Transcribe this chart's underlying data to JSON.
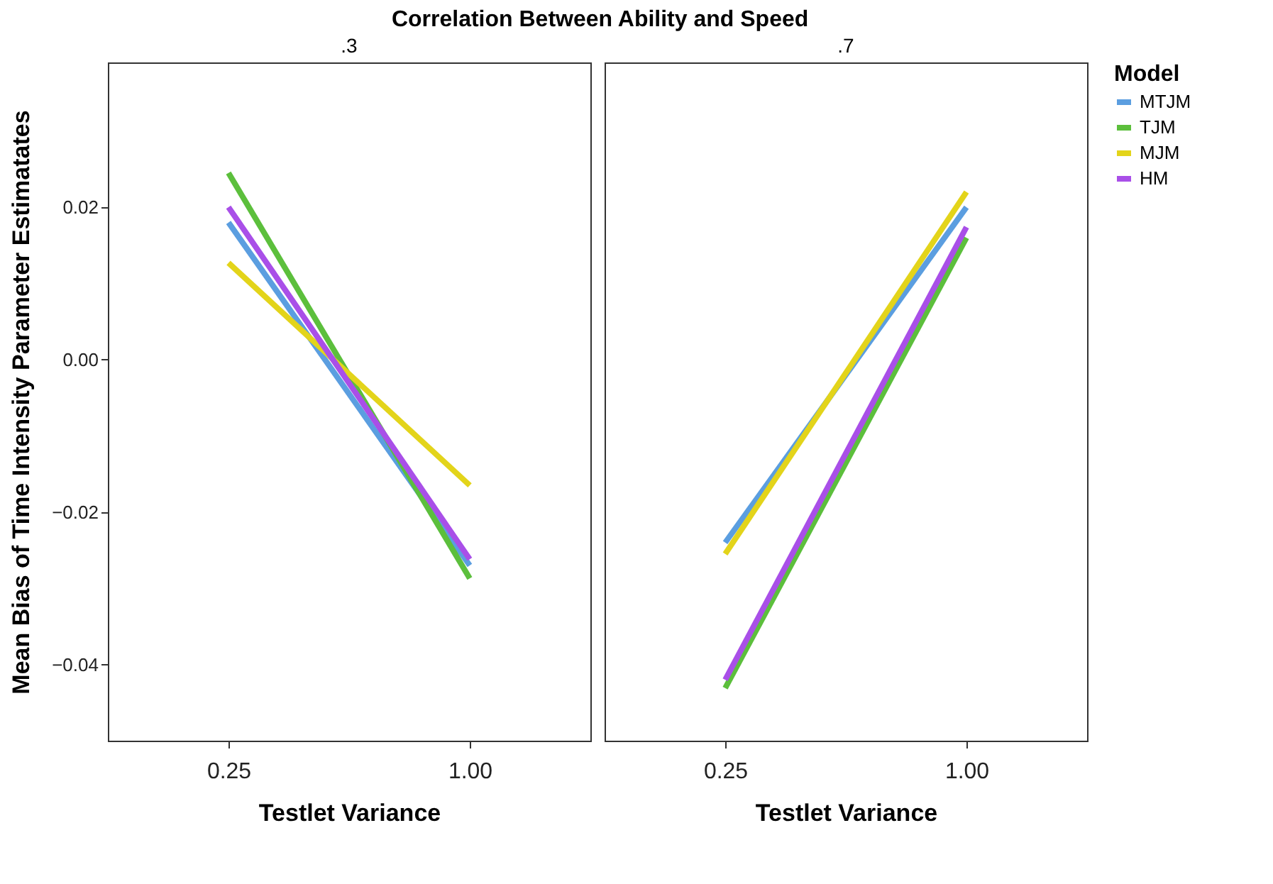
{
  "chart_data": [
    {
      "type": "line",
      "title": ".3",
      "xlabel": "Testlet Variance",
      "ylabel": "Mean Bias of Time Intensity Parameter Estimatates",
      "legend_title": "Model",
      "legend": "top right",
      "annotations": [
        "Correlation Between Ability and Speed"
      ],
      "categories": [
        "0.25",
        "1.00"
      ],
      "ylim": [
        -0.05,
        0.039
      ],
      "yticks": [
        -0.04,
        -0.02,
        {
          "value": 0,
          "label": "0.00"
        },
        0.02
      ],
      "grid": false,
      "marker": "none",
      "line_style": "solid",
      "series": [
        {
          "name": "MTJM",
          "color": "#5b9ee0",
          "values": [
            0.018,
            -0.027
          ]
        },
        {
          "name": "TJM",
          "color": "#5cbf3c",
          "values": [
            0.0245,
            -0.0287
          ]
        },
        {
          "name": "MJM",
          "color": "#e3d41a",
          "values": [
            0.0127,
            -0.0165
          ]
        },
        {
          "name": "HM",
          "color": "#a94fe8",
          "values": [
            0.02,
            -0.0262
          ]
        }
      ]
    },
    {
      "type": "line",
      "title": ".7",
      "xlabel": "Testlet Variance",
      "categories": [
        "0.25",
        "1.00"
      ],
      "ylim": [
        -0.05,
        0.039
      ],
      "tick_labels": "x",
      "grid": false,
      "marker": "none",
      "line_style": "solid",
      "series": [
        {
          "name": "MTJM",
          "color": "#5b9ee0",
          "values": [
            -0.024,
            0.02
          ]
        },
        {
          "name": "TJM",
          "color": "#5cbf3c",
          "values": [
            -0.0431,
            0.016
          ]
        },
        {
          "name": "MJM",
          "color": "#e3d41a",
          "values": [
            -0.0255,
            0.022
          ]
        },
        {
          "name": "HM",
          "color": "#a94fe8",
          "values": [
            -0.042,
            0.0174
          ]
        }
      ]
    }
  ]
}
